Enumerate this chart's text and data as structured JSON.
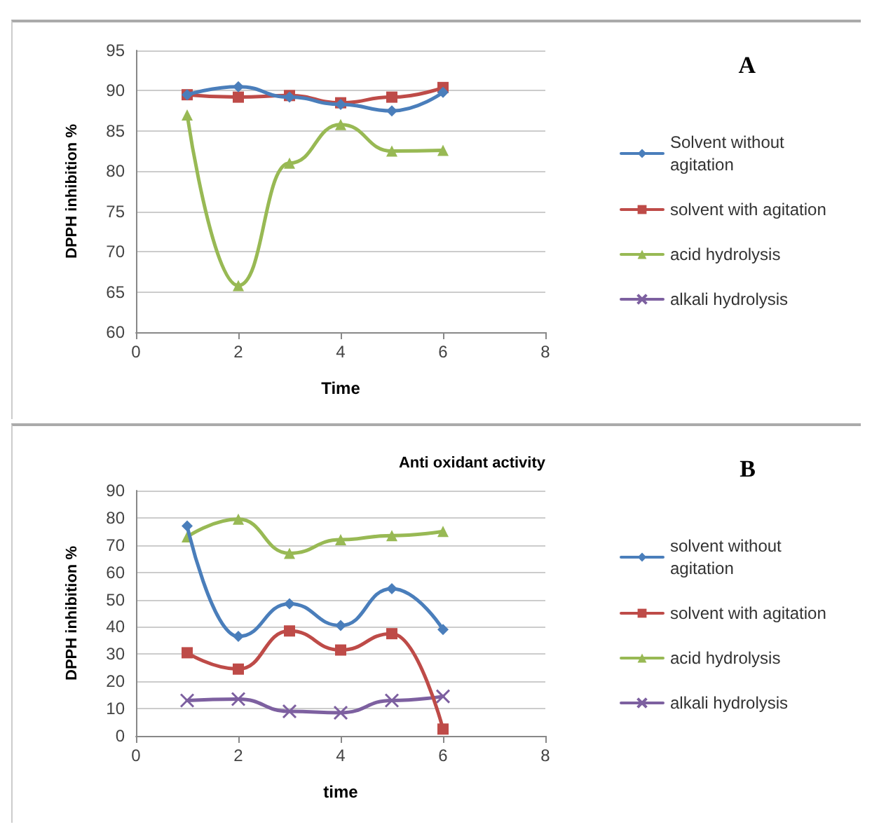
{
  "chart_data": [
    {
      "type": "line",
      "annotations": [
        "A"
      ],
      "xlabel": "Time",
      "ylabel": "DPPH inhibition %",
      "xlim": [
        0,
        8
      ],
      "xticks": [
        0,
        2,
        4,
        6,
        8
      ],
      "ylim": [
        60,
        95
      ],
      "yticks": [
        60,
        65,
        70,
        75,
        80,
        85,
        90,
        95
      ],
      "grid": "y",
      "legend": "right",
      "x": [
        1,
        2,
        3,
        4,
        5,
        6
      ],
      "series": [
        {
          "name": "Solvent without agitation",
          "color": "#4a7ebb",
          "marker": "diamond",
          "values": [
            89.5,
            90.5,
            89.2,
            88.3,
            87.5,
            89.8
          ]
        },
        {
          "name": "solvent with agitation",
          "color": "#be4b48",
          "marker": "square",
          "values": [
            89.5,
            89.2,
            89.4,
            88.5,
            89.2,
            90.4
          ]
        },
        {
          "name": "acid hydrolysis",
          "color": "#98b954",
          "marker": "triangle",
          "values": [
            87,
            65.8,
            81,
            85.8,
            82.5,
            82.6
          ]
        },
        {
          "name": "alkali hydrolysis",
          "color": "#7d60a0",
          "marker": "cross",
          "values": [
            null,
            null,
            null,
            null,
            null,
            null
          ]
        }
      ]
    },
    {
      "type": "line",
      "title": "Anti oxidant activity",
      "annotations": [
        "B"
      ],
      "xlabel": "time",
      "ylabel": "DPPH inhibition %",
      "xlim": [
        0,
        8
      ],
      "xticks": [
        0,
        2,
        4,
        6,
        8
      ],
      "ylim": [
        0,
        90
      ],
      "yticks": [
        0,
        10,
        20,
        30,
        40,
        50,
        60,
        70,
        80,
        90
      ],
      "grid": "y",
      "legend": "right",
      "x": [
        1,
        2,
        3,
        4,
        5,
        6
      ],
      "series": [
        {
          "name": "solvent without agitation",
          "color": "#4a7ebb",
          "marker": "diamond",
          "values": [
            77,
            36.5,
            48.5,
            40.5,
            54,
            39
          ]
        },
        {
          "name": "solvent with agitation",
          "color": "#be4b48",
          "marker": "square",
          "values": [
            30.5,
            24.5,
            38.5,
            31.5,
            37.5,
            2.5
          ]
        },
        {
          "name": "acid hydrolysis",
          "color": "#98b954",
          "marker": "triangle",
          "values": [
            73,
            79.5,
            67,
            72,
            73.5,
            75
          ]
        },
        {
          "name": "alkali hydrolysis",
          "color": "#7d60a0",
          "marker": "cross",
          "values": [
            13,
            13.5,
            9,
            8.5,
            13,
            14.5
          ]
        }
      ]
    }
  ]
}
